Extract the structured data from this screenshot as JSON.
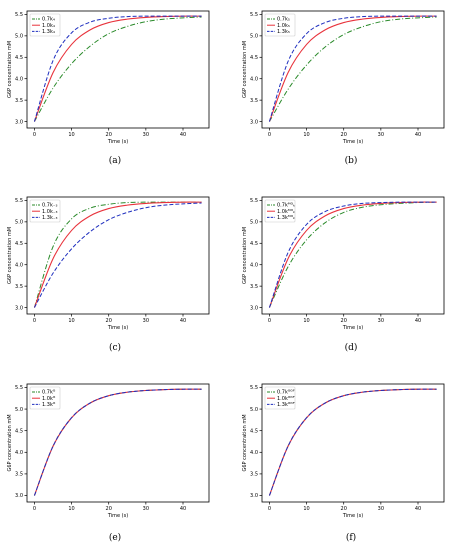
{
  "figure": {
    "colors": {
      "dashdot": "#2a8a2a",
      "solid": "#e8333c",
      "dashed": "#1f2fbf"
    },
    "line_styles": [
      "dashdot",
      "solid",
      "dashed"
    ]
  },
  "chart_data": [
    {
      "panel": "(a)",
      "type": "line",
      "xlabel": "Time (s)",
      "ylabel": "G6P concentration mM",
      "xlim": [
        -2,
        47
      ],
      "ylim": [
        2.85,
        5.58
      ],
      "xticks": [
        0,
        10,
        20,
        30,
        40
      ],
      "yticks": [
        3.0,
        3.5,
        4.0,
        4.5,
        5.0,
        5.5
      ],
      "legend_position": "top-left",
      "series": [
        {
          "name": "0.7k₄",
          "style": "dashdot",
          "x": [
            0,
            5,
            10,
            15,
            20,
            25,
            30,
            35,
            40,
            45
          ],
          "y": [
            3.0,
            3.78,
            4.35,
            4.76,
            5.05,
            5.22,
            5.33,
            5.39,
            5.42,
            5.44
          ]
        },
        {
          "name": "1.0k₄",
          "style": "solid",
          "x": [
            0,
            5,
            10,
            15,
            20,
            25,
            30,
            35,
            40,
            45
          ],
          "y": [
            3.0,
            4.14,
            4.8,
            5.14,
            5.31,
            5.39,
            5.43,
            5.45,
            5.46,
            5.46
          ]
        },
        {
          "name": "1.3k₄",
          "style": "dashed",
          "x": [
            0,
            5,
            10,
            15,
            20,
            25,
            30,
            35,
            40,
            45
          ],
          "y": [
            3.0,
            4.42,
            5.07,
            5.32,
            5.41,
            5.45,
            5.46,
            5.46,
            5.46,
            5.46
          ]
        }
      ]
    },
    {
      "panel": "(b)",
      "type": "line",
      "xlabel": "Time (s)",
      "ylabel": "G6P concentration mM",
      "xlim": [
        -2,
        47
      ],
      "ylim": [
        2.85,
        5.58
      ],
      "xticks": [
        0,
        10,
        20,
        30,
        40
      ],
      "yticks": [
        3.0,
        3.5,
        4.0,
        4.5,
        5.0,
        5.5
      ],
      "legend_position": "top-left",
      "series": [
        {
          "name": "0.7k₅",
          "style": "dashdot",
          "x": [
            0,
            5,
            10,
            15,
            20,
            25,
            30,
            35,
            40,
            45
          ],
          "y": [
            3.0,
            3.75,
            4.32,
            4.74,
            5.03,
            5.21,
            5.33,
            5.39,
            5.42,
            5.44
          ]
        },
        {
          "name": "1.0k₅",
          "style": "solid",
          "x": [
            0,
            5,
            10,
            15,
            20,
            25,
            30,
            35,
            40,
            45
          ],
          "y": [
            3.0,
            4.14,
            4.8,
            5.14,
            5.31,
            5.39,
            5.43,
            5.45,
            5.46,
            5.46
          ]
        },
        {
          "name": "1.3k₅",
          "style": "dashed",
          "x": [
            0,
            5,
            10,
            15,
            20,
            25,
            30,
            35,
            40,
            45
          ],
          "y": [
            3.0,
            4.4,
            5.05,
            5.31,
            5.41,
            5.45,
            5.46,
            5.46,
            5.46,
            5.46
          ]
        }
      ]
    },
    {
      "panel": "(c)",
      "type": "line",
      "xlabel": "Time (s)",
      "ylabel": "G6P concentration mM",
      "xlim": [
        -2,
        47
      ],
      "ylim": [
        2.85,
        5.58
      ],
      "xticks": [
        0,
        10,
        20,
        30,
        40
      ],
      "yticks": [
        3.0,
        3.5,
        4.0,
        4.5,
        5.0,
        5.5
      ],
      "legend_position": "top-left",
      "series": [
        {
          "name": "0.7k₋₃",
          "style": "dashdot",
          "x": [
            0,
            5,
            10,
            15,
            20,
            25,
            30,
            35,
            40,
            45
          ],
          "y": [
            3.0,
            4.42,
            5.07,
            5.32,
            5.41,
            5.45,
            5.46,
            5.46,
            5.46,
            5.46
          ]
        },
        {
          "name": "1.0k₋₃",
          "style": "solid",
          "x": [
            0,
            5,
            10,
            15,
            20,
            25,
            30,
            35,
            40,
            45
          ],
          "y": [
            3.0,
            4.14,
            4.8,
            5.14,
            5.31,
            5.39,
            5.43,
            5.45,
            5.46,
            5.46
          ]
        },
        {
          "name": "1.3k₋₃",
          "style": "dashed",
          "x": [
            0,
            5,
            10,
            15,
            20,
            25,
            30,
            35,
            40,
            45
          ],
          "y": [
            3.0,
            3.8,
            4.37,
            4.77,
            5.05,
            5.22,
            5.33,
            5.39,
            5.42,
            5.44
          ]
        }
      ]
    },
    {
      "panel": "(d)",
      "type": "line",
      "xlabel": "Time (s)",
      "ylabel": "G6P concentration mM",
      "xlim": [
        -2,
        47
      ],
      "ylim": [
        2.85,
        5.58
      ],
      "xticks": [
        0,
        10,
        20,
        30,
        40
      ],
      "yticks": [
        3.0,
        3.5,
        4.0,
        4.5,
        5.0,
        5.5
      ],
      "legend_position": "top-left",
      "series": [
        {
          "name": "0.7kᴹᴳₖ",
          "style": "dashdot",
          "x": [
            0,
            5,
            10,
            15,
            20,
            25,
            30,
            35,
            40,
            45
          ],
          "y": [
            3.0,
            3.95,
            4.58,
            4.98,
            5.22,
            5.34,
            5.4,
            5.43,
            5.45,
            5.46
          ]
        },
        {
          "name": "1.0kᴹᴳₖ",
          "style": "solid",
          "x": [
            0,
            5,
            10,
            15,
            20,
            25,
            30,
            35,
            40,
            45
          ],
          "y": [
            3.0,
            4.14,
            4.8,
            5.14,
            5.31,
            5.39,
            5.43,
            5.45,
            5.46,
            5.46
          ]
        },
        {
          "name": "1.3kᴹᴳₖ",
          "style": "dashed",
          "x": [
            0,
            5,
            10,
            15,
            20,
            25,
            30,
            35,
            40,
            45
          ],
          "y": [
            3.0,
            4.28,
            4.94,
            5.24,
            5.37,
            5.43,
            5.45,
            5.46,
            5.46,
            5.46
          ]
        }
      ]
    },
    {
      "panel": "(e)",
      "type": "line",
      "xlabel": "Time (s)",
      "ylabel": "G6P concentration mM",
      "xlim": [
        -2,
        47
      ],
      "ylim": [
        2.85,
        5.58
      ],
      "xticks": [
        0,
        10,
        20,
        30,
        40
      ],
      "yticks": [
        3.0,
        3.5,
        4.0,
        4.5,
        5.0,
        5.5
      ],
      "legend_position": "top-left",
      "series": [
        {
          "name": "0.7kᴳ",
          "style": "dashdot",
          "x": [
            0,
            5,
            10,
            15,
            20,
            25,
            30,
            35,
            40,
            45
          ],
          "y": [
            3.0,
            4.14,
            4.8,
            5.14,
            5.31,
            5.39,
            5.43,
            5.45,
            5.46,
            5.46
          ]
        },
        {
          "name": "1.0kᴳ",
          "style": "solid",
          "x": [
            0,
            5,
            10,
            15,
            20,
            25,
            30,
            35,
            40,
            45
          ],
          "y": [
            3.0,
            4.14,
            4.8,
            5.14,
            5.31,
            5.39,
            5.43,
            5.45,
            5.46,
            5.46
          ]
        },
        {
          "name": "1.3kᴳ",
          "style": "dashed",
          "x": [
            0,
            5,
            10,
            15,
            20,
            25,
            30,
            35,
            40,
            45
          ],
          "y": [
            3.0,
            4.14,
            4.8,
            5.14,
            5.31,
            5.39,
            5.43,
            5.45,
            5.46,
            5.46
          ]
        }
      ]
    },
    {
      "panel": "(f)",
      "type": "line",
      "xlabel": "Time (s)",
      "ylabel": "G6P concentration mM",
      "xlim": [
        -2,
        47
      ],
      "ylim": [
        2.85,
        5.58
      ],
      "xticks": [
        0,
        10,
        20,
        30,
        40
      ],
      "yticks": [
        3.0,
        3.5,
        4.0,
        4.5,
        5.0,
        5.5
      ],
      "legend_position": "top-left",
      "series": [
        {
          "name": "0.7kᴳᴳᴾ",
          "style": "dashdot",
          "x": [
            0,
            5,
            10,
            15,
            20,
            25,
            30,
            35,
            40,
            45
          ],
          "y": [
            3.0,
            4.14,
            4.8,
            5.14,
            5.31,
            5.39,
            5.43,
            5.45,
            5.46,
            5.46
          ]
        },
        {
          "name": "1.0kᴳᴳᴾ",
          "style": "solid",
          "x": [
            0,
            5,
            10,
            15,
            20,
            25,
            30,
            35,
            40,
            45
          ],
          "y": [
            3.0,
            4.14,
            4.8,
            5.14,
            5.31,
            5.39,
            5.43,
            5.45,
            5.46,
            5.46
          ]
        },
        {
          "name": "1.3kᴳᴳᴾ",
          "style": "dashed",
          "x": [
            0,
            5,
            10,
            15,
            20,
            25,
            30,
            35,
            40,
            45
          ],
          "y": [
            3.0,
            4.14,
            4.8,
            5.14,
            5.31,
            5.39,
            5.43,
            5.45,
            5.46,
            5.46
          ]
        }
      ]
    }
  ]
}
